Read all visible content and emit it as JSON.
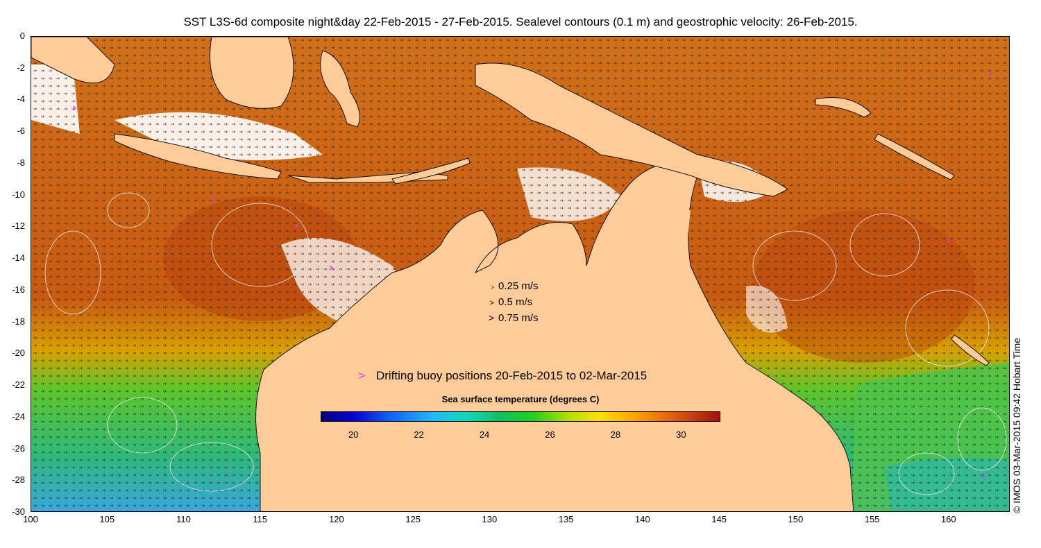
{
  "title": "SST L3S-6d composite night&day 22-Feb-2015 - 27-Feb-2015. Sealevel contours (0.1 m) and geostrophic velocity: 26-Feb-2015.",
  "axes": {
    "x_range": [
      100,
      164
    ],
    "y_range": [
      -30,
      0
    ],
    "x_ticks": [
      "100",
      "105",
      "110",
      "115",
      "120",
      "125",
      "130",
      "135",
      "140",
      "145",
      "150",
      "155",
      "160"
    ],
    "y_ticks": [
      "0",
      "-2",
      "-4",
      "-6",
      "-8",
      "-10",
      "-12",
      "-14",
      "-16",
      "-18",
      "-20",
      "-22",
      "-24",
      "-26",
      "-28",
      "-30"
    ]
  },
  "velocity_scale": [
    {
      "glyph": ">",
      "label": "0.25 m/s"
    },
    {
      "glyph": ">",
      "label": "0.5 m/s"
    },
    {
      "glyph": ">",
      "label": "0.75 m/s"
    }
  ],
  "buoy_legend": {
    "glyph": ">",
    "label": "Drifting buoy positions 20-Feb-2015 to 02-Mar-2015",
    "color": "#ff22ff"
  },
  "colorbar": {
    "title": "Sea surface temperature (degrees C)",
    "range": [
      19,
      31.2
    ],
    "ticks": [
      "20",
      "22",
      "24",
      "26",
      "28",
      "30"
    ]
  },
  "credit": "© IMOS 03-Mar-2015 09:42 Hobart Time",
  "colors": {
    "land": "#ffcc99",
    "warm_sea": "#cc5a14",
    "cloud": "#ffffff",
    "contour": "#e8e8e8",
    "arrow": "#111111"
  }
}
